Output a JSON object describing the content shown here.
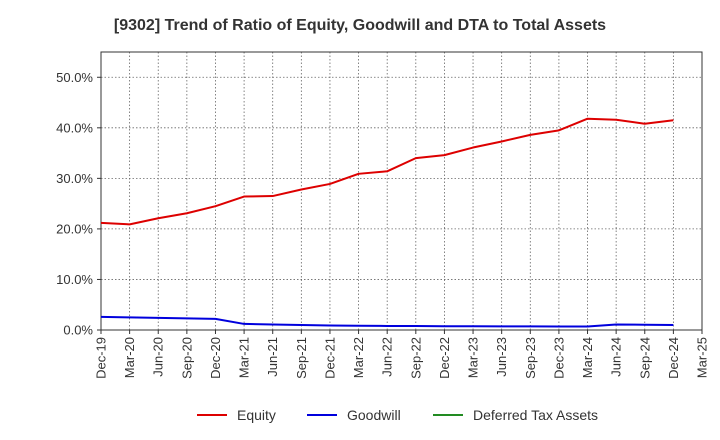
{
  "chart_data": {
    "type": "line",
    "title": "[9302]  Trend of Ratio of Equity, Goodwill and DTA to Total Assets",
    "xlabel": "",
    "ylabel": "",
    "ylim": [
      0,
      55
    ],
    "yticks": [
      "0.0%",
      "10.0%",
      "20.0%",
      "30.0%",
      "40.0%",
      "50.0%"
    ],
    "ytick_values": [
      0,
      10,
      20,
      30,
      40,
      50
    ],
    "categories": [
      "Dec-19",
      "Mar-20",
      "Jun-20",
      "Sep-20",
      "Dec-20",
      "Mar-21",
      "Jun-21",
      "Sep-21",
      "Dec-21",
      "Mar-22",
      "Jun-22",
      "Sep-22",
      "Dec-22",
      "Mar-23",
      "Jun-23",
      "Sep-23",
      "Dec-23",
      "Mar-24",
      "Jun-24",
      "Sep-24",
      "Dec-24",
      "Mar-25"
    ],
    "grid": true,
    "legend_position": "bottom",
    "series": [
      {
        "name": "Equity",
        "color": "#dd0000",
        "values": [
          21.2,
          20.9,
          22.1,
          23.1,
          24.5,
          26.4,
          26.5,
          27.8,
          28.9,
          30.9,
          31.4,
          34.0,
          34.6,
          36.1,
          37.3,
          38.6,
          39.5,
          41.8,
          41.6,
          40.8,
          41.5,
          null
        ]
      },
      {
        "name": "Goodwill",
        "color": "#0000dd",
        "values": [
          2.6,
          2.5,
          2.4,
          2.3,
          2.2,
          1.2,
          1.1,
          1.0,
          0.9,
          0.85,
          0.8,
          0.8,
          0.75,
          0.75,
          0.72,
          0.72,
          0.7,
          0.7,
          1.1,
          1.05,
          1.0,
          null
        ]
      },
      {
        "name": "Deferred Tax Assets",
        "color": "#228b22",
        "values": [
          null,
          null,
          null,
          null,
          null,
          null,
          null,
          null,
          null,
          null,
          null,
          null,
          null,
          null,
          null,
          null,
          null,
          null,
          null,
          null,
          null,
          null
        ]
      }
    ]
  }
}
